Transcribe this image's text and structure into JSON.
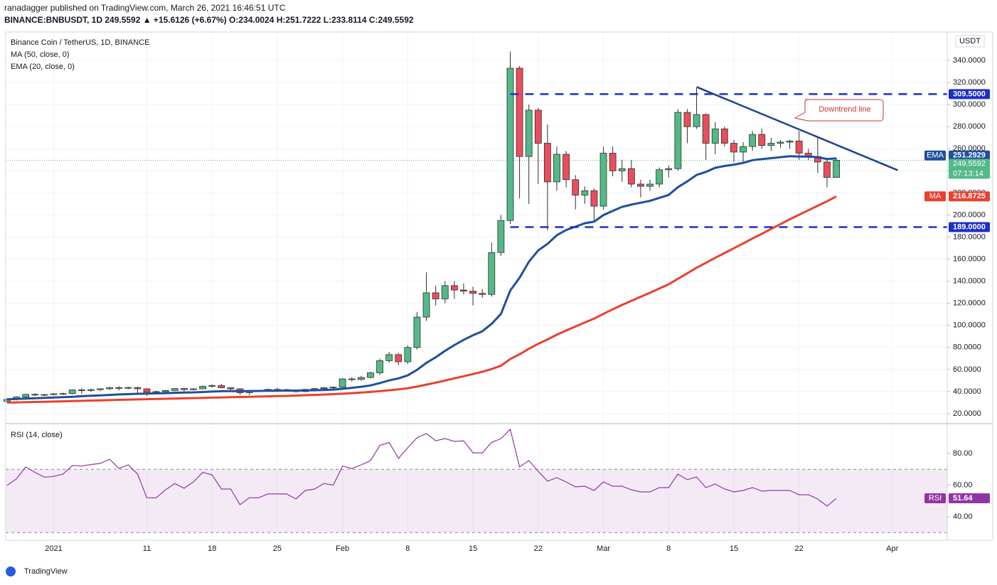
{
  "header": {
    "publisher": "ranadagger published on TradingView.com, March 26, 2021 16:46:51 UTC",
    "quote": "BINANCE:BNBUSDT, 1D 249.5592 ▲ +15.6126 (+6.67%) O:234.0024 H:251.7222 L:233.8114 C:249.5592"
  },
  "chart_data": [
    {
      "type": "candlestick",
      "title": "Binance Coin / TetherUS, 1D, BINANCE",
      "y_unit": "USDT",
      "up_color": "#53b987",
      "down_color": "#eb4d5c",
      "open": [
        31,
        33,
        35,
        37.5,
        37,
        37.3,
        38,
        38.2,
        41.5,
        41,
        41.8,
        42.5,
        43.5,
        43,
        43.7,
        42.5,
        39.5,
        40,
        41,
        42.8,
        41.8,
        42.5,
        44.8,
        45.5,
        43.5,
        42.5,
        39,
        40.5,
        40.8,
        42,
        41.8,
        41.5,
        40,
        42,
        42.7,
        43.5,
        44,
        51.5,
        51,
        52.8,
        57,
        68,
        73.5,
        67,
        80,
        107.5,
        129.5,
        124,
        136,
        132,
        131,
        129,
        128,
        166,
        195,
        333,
        253,
        295,
        265,
        230,
        255,
        232,
        218,
        222,
        208,
        256,
        240,
        242,
        228,
        226,
        228,
        241,
        242,
        293,
        280,
        291,
        265,
        278,
        265,
        257,
        262,
        273,
        263,
        265,
        266,
        267,
        256,
        253,
        248,
        234.0024
      ],
      "high": [
        34,
        36,
        38,
        38.5,
        38,
        38.5,
        39,
        42,
        43,
        42.5,
        43,
        44.5,
        45,
        44.5,
        44.5,
        43,
        41,
        41.5,
        43,
        43.5,
        43,
        45.5,
        46.5,
        47,
        44,
        43,
        41.5,
        41.5,
        42.5,
        43.5,
        42.5,
        42,
        42.5,
        43.5,
        44,
        44.5,
        52,
        53,
        54,
        58,
        70,
        76,
        75,
        82,
        112,
        148,
        136,
        140,
        140,
        138,
        135,
        133,
        175,
        200,
        348,
        335,
        300,
        297,
        282,
        262,
        258,
        236,
        226,
        224,
        262,
        262,
        250,
        250,
        232,
        232,
        243,
        245,
        296,
        296,
        315,
        292,
        284,
        280,
        268,
        266,
        276,
        278,
        270,
        268,
        268,
        276,
        260,
        270,
        250,
        251.7222
      ],
      "low": [
        30,
        32,
        34,
        36,
        36,
        36.5,
        37,
        37.5,
        38,
        39.5,
        40.5,
        41.5,
        41,
        42,
        39,
        36,
        38,
        39,
        40.5,
        40,
        41,
        42,
        43.5,
        43,
        40,
        37,
        37,
        39.5,
        40,
        41,
        40.5,
        39,
        39.5,
        41,
        42,
        42.5,
        43.5,
        49,
        50,
        52,
        55,
        66,
        64,
        65,
        78,
        104,
        118,
        120,
        124,
        128,
        118,
        125,
        126,
        163,
        192,
        215,
        210,
        228,
        186,
        222,
        225,
        205,
        210,
        195,
        205,
        235,
        230,
        225,
        216,
        222,
        225,
        234,
        240,
        265,
        278,
        250,
        255,
        262,
        248,
        248,
        258,
        260,
        258,
        261,
        260,
        250,
        250,
        238,
        225,
        233.8114
      ],
      "close": [
        33,
        35,
        37.5,
        37,
        37.3,
        38,
        38.2,
        41.5,
        41,
        41.8,
        42.5,
        43.5,
        43,
        43.7,
        42.5,
        39.5,
        40,
        41,
        42.8,
        41.8,
        42.5,
        44.8,
        45.5,
        43.5,
        42.5,
        39,
        40.5,
        40.8,
        42,
        41.8,
        41.5,
        40,
        42,
        42.7,
        43.5,
        44,
        51.5,
        51,
        52.8,
        57,
        68,
        73.5,
        67,
        80,
        107.5,
        129.5,
        124,
        136,
        132,
        131,
        129,
        128,
        166,
        195,
        333,
        253,
        295,
        265,
        230,
        255,
        232,
        218,
        222,
        208,
        256,
        240,
        242,
        228,
        226,
        228,
        241,
        242,
        293,
        280,
        291,
        265,
        278,
        265,
        257,
        262,
        273,
        263,
        265,
        266,
        267,
        256,
        253,
        248,
        234,
        249.5592
      ],
      "series": [
        {
          "name": "MA (50, close, 0)",
          "badge": "MA",
          "color": "#e8412f",
          "values": [
            30,
            30.2,
            30.4,
            30.6,
            30.8,
            31,
            31.2,
            31.4,
            31.6,
            31.9,
            32.1,
            32.3,
            32.5,
            32.7,
            32.9,
            33.1,
            33.3,
            33.5,
            33.7,
            33.9,
            34.1,
            34.3,
            34.5,
            34.7,
            34.9,
            35.1,
            35.3,
            35.5,
            35.7,
            35.9,
            36.1,
            36.4,
            36.7,
            37,
            37.3,
            37.7,
            38.1,
            38.6,
            39.1,
            39.7,
            40.4,
            41.2,
            42,
            43,
            44.5,
            46.3,
            48.1,
            50,
            52,
            53.9,
            55.9,
            57.9,
            60.4,
            63.4,
            69.5,
            73.8,
            78.8,
            83.3,
            87.2,
            91.5,
            95.3,
            98.9,
            102.6,
            106.1,
            110.4,
            114.5,
            118.5,
            122.2,
            125.9,
            129.5,
            133.4,
            137.2,
            142.2,
            147.1,
            152.2,
            156.6,
            161.2,
            165.5,
            169.9,
            174.2,
            178.8,
            183,
            187.4,
            191.7,
            196.1,
            200.2,
            204.3,
            208.4,
            212.4,
            216.8725
          ]
        },
        {
          "name": "EMA (20, close, 0)",
          "badge": "EMA",
          "color": "#1f4e9c",
          "values": [
            33,
            33.3,
            33.7,
            34,
            34.3,
            34.6,
            34.9,
            35.3,
            35.8,
            36.2,
            36.6,
            37,
            37.4,
            37.7,
            38,
            38.2,
            38.4,
            38.6,
            38.9,
            39.1,
            39.3,
            39.6,
            40,
            40.3,
            40.4,
            40.4,
            40.5,
            40.6,
            40.7,
            40.8,
            40.9,
            40.9,
            41,
            41.2,
            41.5,
            41.8,
            42.5,
            43.4,
            44.4,
            45.6,
            47.7,
            50.1,
            52,
            54.7,
            59.7,
            66,
            71.1,
            76.9,
            82.1,
            86.8,
            91.1,
            94.6,
            101.4,
            110.3,
            131.5,
            143.1,
            157.6,
            167.9,
            173.8,
            181.6,
            186.4,
            189.4,
            192.5,
            194,
            199.9,
            203.7,
            207.4,
            209.4,
            211.1,
            212.8,
            215.5,
            218.1,
            225.2,
            230.4,
            236.3,
            239,
            242.7,
            244.4,
            245.6,
            247.2,
            249.7,
            250.6,
            251.5,
            252.4,
            253.3,
            252.9,
            252.9,
            252.4,
            250.7,
            251.2929
          ]
        }
      ],
      "xlim": [
        -0.15,
        100.9
      ],
      "xticks": [
        {
          "value": 5,
          "label": "2021"
        },
        {
          "value": 15,
          "label": "11"
        },
        {
          "value": 22,
          "label": "18"
        },
        {
          "value": 29,
          "label": "25"
        },
        {
          "value": 36,
          "label": "Feb"
        },
        {
          "value": 43,
          "label": "8"
        },
        {
          "value": 50,
          "label": "15"
        },
        {
          "value": 57,
          "label": "22"
        },
        {
          "value": 64,
          "label": "Mar"
        },
        {
          "value": 71,
          "label": "8"
        },
        {
          "value": 78,
          "label": "15"
        },
        {
          "value": 85,
          "label": "22"
        },
        {
          "value": 95,
          "label": "Apr"
        }
      ],
      "ylim": [
        11.6,
        365.8
      ],
      "yticks": [
        {
          "value": 20,
          "label": "20.0000"
        },
        {
          "value": 40,
          "label": "40.0000"
        },
        {
          "value": 60,
          "label": "60.0000"
        },
        {
          "value": 80,
          "label": "80.0000"
        },
        {
          "value": 100,
          "label": "100.0000"
        },
        {
          "value": 120,
          "label": "120.0000"
        },
        {
          "value": 140,
          "label": "140.0000"
        },
        {
          "value": 160,
          "label": "160.0000"
        },
        {
          "value": 180,
          "label": "180.0000"
        },
        {
          "value": 200,
          "label": "200.0000"
        },
        {
          "value": 220,
          "label": "220.0000"
        },
        {
          "value": 240,
          "label": "240.0000"
        },
        {
          "value": 260,
          "label": "260.0000"
        },
        {
          "value": 280,
          "label": "280.0000"
        },
        {
          "value": 300,
          "label": "300.0000"
        },
        {
          "value": 320,
          "label": "320.0000"
        },
        {
          "value": 340,
          "label": "340.0000"
        }
      ],
      "levels": [
        {
          "value": 309.5,
          "label": "309.5000"
        },
        {
          "value": 189,
          "label": "189.0000"
        }
      ],
      "level_color": "#1e2fc8",
      "trendline": {
        "x": [
          74,
          95.6
        ],
        "y": [
          316,
          240.5
        ],
        "color": "#1f3f8f"
      },
      "annotation": "Downtrend line",
      "countdown": "07:13:14"
    },
    {
      "type": "line",
      "title": "RSI (14, close)",
      "badge": "RSI",
      "color": "#9334a6",
      "values": [
        59.8,
        64,
        71.5,
        68,
        65,
        65.5,
        67,
        72.4,
        72,
        73,
        73.7,
        76.4,
        70.5,
        72.8,
        67,
        52,
        52,
        57,
        61,
        58,
        62,
        68,
        66.5,
        57.5,
        57.5,
        47.6,
        52,
        52,
        54.4,
        54.4,
        54.4,
        51.2,
        56.6,
        57.5,
        61,
        60,
        72,
        70.5,
        72.8,
        75.5,
        85,
        87,
        76.9,
        83.6,
        90,
        92.6,
        88,
        89.4,
        87.6,
        88,
        80.4,
        80.4,
        87,
        89.4,
        95.3,
        71.5,
        75.5,
        68.8,
        62.5,
        64.7,
        62,
        58.9,
        59.3,
        56.6,
        62,
        59.3,
        59.3,
        57,
        55.7,
        55.7,
        58.4,
        58.4,
        67,
        63.4,
        65.2,
        58.4,
        60.7,
        57.5,
        55.7,
        56.6,
        58.4,
        56.2,
        56.6,
        56.6,
        56.6,
        53.9,
        53.9,
        51.2,
        46.7,
        51.64
      ],
      "ylim": [
        26.5,
        98.4
      ],
      "yticks": [
        {
          "value": 40,
          "label": "40.00"
        },
        {
          "value": 60,
          "label": "60.00"
        },
        {
          "value": 80,
          "label": "80.00"
        }
      ],
      "band": [
        30,
        70
      ]
    }
  ],
  "footer": {
    "brand": "TradingView"
  }
}
